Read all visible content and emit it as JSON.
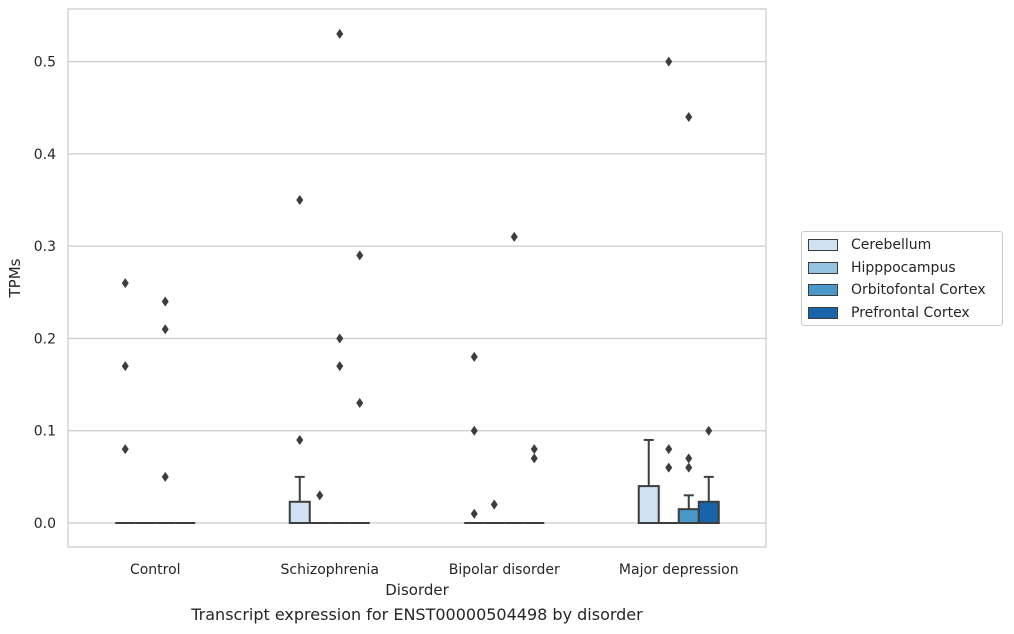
{
  "caption": "Transcript expression for ENST00000504498 by disorder",
  "legend": {
    "items": [
      {
        "label": "Cerebellum",
        "color": "#d0e1f2"
      },
      {
        "label": "Hipppocampus",
        "color": "#94c4df"
      },
      {
        "label": "Orbitofontal Cortex",
        "color": "#4a98c9"
      },
      {
        "label": "Prefrontal Cortex",
        "color": "#1764ab"
      }
    ]
  },
  "chart_data": {
    "type": "box",
    "xlabel": "Disorder",
    "ylabel": "TPMs",
    "categories": [
      "Control",
      "Schizophrenia",
      "Bipolar disorder",
      "Major depression"
    ],
    "ylim": [
      -0.026,
      0.557
    ],
    "yticks": [
      "0.0",
      "0.1",
      "0.2",
      "0.3",
      "0.4",
      "0.5"
    ],
    "grid": true,
    "legend_position": "right",
    "series": [
      {
        "name": "Cerebellum",
        "color": "#d0e1f2",
        "boxes": [
          {
            "q1": 0,
            "median": 0,
            "q3": 0,
            "whisker_low": 0,
            "whisker_high": 0,
            "outliers": [
              0.08,
              0.17,
              0.26
            ]
          },
          {
            "q1": 0,
            "median": 0,
            "q3": 0.023,
            "whisker_low": 0,
            "whisker_high": 0.05,
            "outliers": [
              0.09,
              0.35
            ]
          },
          {
            "q1": 0,
            "median": 0,
            "q3": 0,
            "whisker_low": 0,
            "whisker_high": 0,
            "outliers": [
              0.01,
              0.1,
              0.18
            ]
          },
          {
            "q1": 0,
            "median": 0,
            "q3": 0.04,
            "whisker_low": 0,
            "whisker_high": 0.09,
            "outliers": []
          }
        ]
      },
      {
        "name": "Hipppocampus",
        "color": "#94c4df",
        "boxes": [
          {
            "q1": 0,
            "median": 0,
            "q3": 0,
            "whisker_low": 0,
            "whisker_high": 0,
            "outliers": []
          },
          {
            "q1": 0,
            "median": 0,
            "q3": 0,
            "whisker_low": 0,
            "whisker_high": 0,
            "outliers": [
              0.03
            ]
          },
          {
            "q1": 0,
            "median": 0,
            "q3": 0,
            "whisker_low": 0,
            "whisker_high": 0,
            "outliers": [
              0.02
            ]
          },
          {
            "q1": 0,
            "median": 0,
            "q3": 0,
            "whisker_low": 0,
            "whisker_high": 0,
            "outliers": [
              0.06,
              0.08,
              0.5
            ]
          }
        ]
      },
      {
        "name": "Orbitofontal Cortex",
        "color": "#4a98c9",
        "boxes": [
          {
            "q1": 0,
            "median": 0,
            "q3": 0,
            "whisker_low": 0,
            "whisker_high": 0,
            "outliers": [
              0.05,
              0.21,
              0.24
            ]
          },
          {
            "q1": 0,
            "median": 0,
            "q3": 0,
            "whisker_low": 0,
            "whisker_high": 0,
            "outliers": [
              0.17,
              0.2,
              0.53
            ]
          },
          {
            "q1": 0,
            "median": 0,
            "q3": 0,
            "whisker_low": 0,
            "whisker_high": 0,
            "outliers": [
              0.31
            ]
          },
          {
            "q1": 0,
            "median": 0,
            "q3": 0.015,
            "whisker_low": 0,
            "whisker_high": 0.03,
            "outliers": [
              0.06,
              0.07,
              0.44
            ]
          }
        ]
      },
      {
        "name": "Prefrontal Cortex",
        "color": "#1764ab",
        "boxes": [
          {
            "q1": 0,
            "median": 0,
            "q3": 0,
            "whisker_low": 0,
            "whisker_high": 0,
            "outliers": []
          },
          {
            "q1": 0,
            "median": 0,
            "q3": 0,
            "whisker_low": 0,
            "whisker_high": 0,
            "outliers": [
              0.13,
              0.29
            ]
          },
          {
            "q1": 0,
            "median": 0,
            "q3": 0,
            "whisker_low": 0,
            "whisker_high": 0,
            "outliers": [
              0.07,
              0.08
            ]
          },
          {
            "q1": 0,
            "median": 0,
            "q3": 0.023,
            "whisker_low": 0,
            "whisker_high": 0.05,
            "outliers": [
              0.1
            ]
          }
        ]
      }
    ]
  }
}
